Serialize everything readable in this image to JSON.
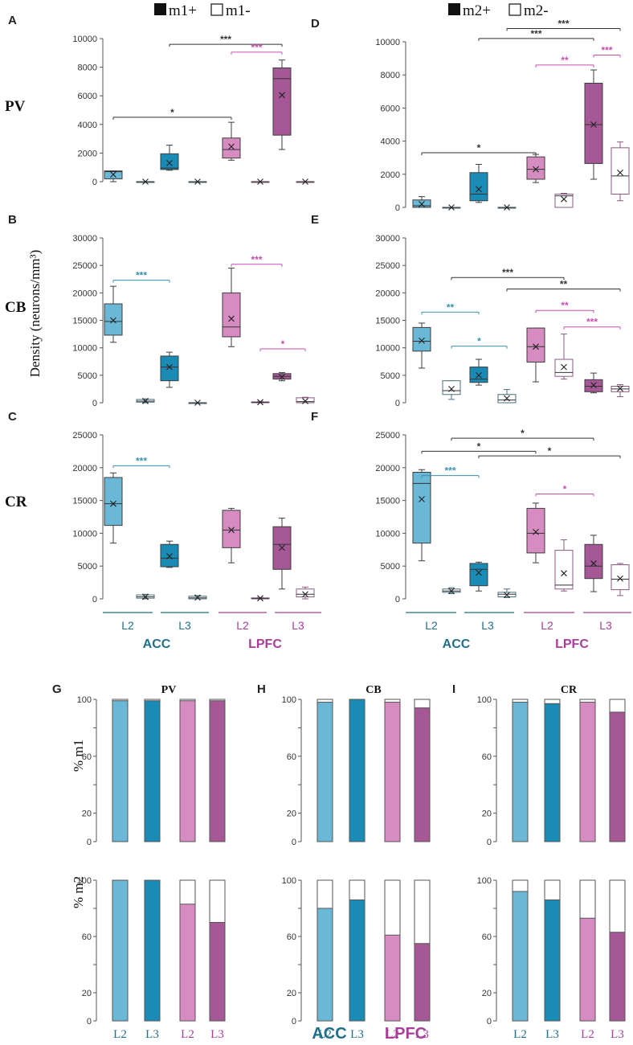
{
  "figure": {
    "legend_top_left": {
      "filled": "m1+",
      "open": "m1-"
    },
    "legend_top_right": {
      "filled": "m2+",
      "open": "m2-"
    },
    "y_axis_title": "Density (neurons/mm³)",
    "row_labels": [
      "PV",
      "CB",
      "CR"
    ],
    "group_labels": [
      "L2",
      "L3",
      "L2",
      "L3"
    ],
    "region_labels": [
      "ACC",
      "LPFC"
    ],
    "bar_y_titles": [
      "% m1",
      "% m2"
    ]
  },
  "colors": {
    "acc_l2": "#6bb7d6",
    "acc_l3": "#1a8bb5",
    "lpfc_l2": "#d68cc1",
    "lpfc_l3": "#a55796",
    "acc_text": "#1f6f8b",
    "lpfc_text": "#a93d9a",
    "sig_black": "#333333",
    "sig_acc": "#3a8fb0",
    "sig_lpfc": "#c44fb0"
  },
  "chart_data": [
    {
      "type": "box",
      "panel": "A",
      "row_label": "PV",
      "marker": "m1",
      "ylim": [
        0,
        10000
      ],
      "ticks": [
        0,
        2000,
        4000,
        6000,
        8000,
        10000
      ],
      "boxes": [
        {
          "group": "ACC L2",
          "fill": "acc_l2",
          "min": 0,
          "q1": 200,
          "median": 700,
          "q3": 750,
          "max": 750,
          "mean": 500
        },
        {
          "group": "ACC L2",
          "fill": "none",
          "min": 0,
          "q1": 0,
          "median": 0,
          "q3": 0,
          "max": 0,
          "mean": 0
        },
        {
          "group": "ACC L3",
          "fill": "acc_l3",
          "min": 800,
          "q1": 850,
          "median": 950,
          "q3": 1950,
          "max": 2550,
          "mean": 1300
        },
        {
          "group": "ACC L3",
          "fill": "none",
          "min": 0,
          "q1": 0,
          "median": 0,
          "q3": 0,
          "max": 0,
          "mean": 0
        },
        {
          "group": "LPFC L2",
          "fill": "lpfc_l2",
          "min": 1500,
          "q1": 1650,
          "median": 2250,
          "q3": 3050,
          "max": 4150,
          "mean": 2450
        },
        {
          "group": "LPFC L2",
          "fill": "none",
          "min": 0,
          "q1": 0,
          "median": 0,
          "q3": 0,
          "max": 0,
          "mean": 0
        },
        {
          "group": "LPFC L3",
          "fill": "lpfc_l3",
          "min": 2250,
          "q1": 3250,
          "median": 7200,
          "q3": 7950,
          "max": 8500,
          "mean": 6050
        },
        {
          "group": "LPFC L3",
          "fill": "none",
          "min": 0,
          "q1": 0,
          "median": 0,
          "q3": 0,
          "max": 0,
          "mean": 0
        }
      ],
      "significance": [
        {
          "from": 0,
          "to": 4,
          "y": 4500,
          "label": "*",
          "color": "sig_black"
        },
        {
          "from": 2,
          "to": 6,
          "y": 9600,
          "label": "***",
          "color": "sig_black"
        },
        {
          "from": 4,
          "to": 6,
          "y": 9050,
          "label": "***",
          "color": "sig_lpfc"
        }
      ]
    },
    {
      "type": "box",
      "panel": "B",
      "row_label": "CB",
      "marker": "m1",
      "ylim": [
        0,
        30000
      ],
      "ticks": [
        0,
        5000,
        10000,
        15000,
        20000,
        25000,
        30000
      ],
      "boxes": [
        {
          "group": "ACC L2",
          "fill": "acc_l2",
          "min": 11000,
          "q1": 12300,
          "median": 14800,
          "q3": 18000,
          "max": 21200,
          "mean": 15000
        },
        {
          "group": "ACC L2",
          "fill": "none",
          "min": 0,
          "q1": 100,
          "median": 300,
          "q3": 600,
          "max": 700,
          "mean": 300
        },
        {
          "group": "ACC L3",
          "fill": "acc_l3",
          "min": 2800,
          "q1": 4000,
          "median": 6500,
          "q3": 8500,
          "max": 9200,
          "mean": 6500
        },
        {
          "group": "ACC L3",
          "fill": "none",
          "min": 0,
          "q1": 0,
          "median": 0,
          "q3": 0,
          "max": 0,
          "mean": 0
        },
        {
          "group": "LPFC L2",
          "fill": "lpfc_l2",
          "min": 10200,
          "q1": 12000,
          "median": 13800,
          "q3": 20000,
          "max": 24500,
          "mean": 15300
        },
        {
          "group": "LPFC L2",
          "fill": "none",
          "min": 0,
          "q1": 0,
          "median": 50,
          "q3": 150,
          "max": 200,
          "mean": 100
        },
        {
          "group": "LPFC L3",
          "fill": "lpfc_l3",
          "min": 4000,
          "q1": 4300,
          "median": 4800,
          "q3": 5300,
          "max": 5500,
          "mean": 4700
        },
        {
          "group": "LPFC L3",
          "fill": "none",
          "min": 0,
          "q1": 0,
          "median": 200,
          "q3": 900,
          "max": 1000,
          "mean": 300
        }
      ],
      "significance": [
        {
          "from": 0,
          "to": 2,
          "y": 22300,
          "label": "***",
          "color": "sig_acc"
        },
        {
          "from": 4,
          "to": 6,
          "y": 25200,
          "label": "***",
          "color": "sig_lpfc"
        },
        {
          "from": 5,
          "to": 7,
          "y": 9800,
          "label": "*",
          "color": "sig_lpfc"
        }
      ]
    },
    {
      "type": "box",
      "panel": "C",
      "row_label": "CR",
      "marker": "m1",
      "ylim": [
        0,
        25000
      ],
      "ticks": [
        0,
        5000,
        10000,
        15000,
        20000,
        25000
      ],
      "boxes": [
        {
          "group": "ACC L2",
          "fill": "acc_l2",
          "min": 8500,
          "q1": 11200,
          "median": 14500,
          "q3": 18500,
          "max": 19200,
          "mean": 14500
        },
        {
          "group": "ACC L2",
          "fill": "none",
          "min": 0,
          "q1": 100,
          "median": 300,
          "q3": 600,
          "max": 700,
          "mean": 300
        },
        {
          "group": "ACC L3",
          "fill": "acc_l3",
          "min": 4800,
          "q1": 4900,
          "median": 6200,
          "q3": 8300,
          "max": 8800,
          "mean": 6500
        },
        {
          "group": "ACC L3",
          "fill": "none",
          "min": 0,
          "q1": 0,
          "median": 150,
          "q3": 400,
          "max": 500,
          "mean": 200
        },
        {
          "group": "LPFC L2",
          "fill": "lpfc_l2",
          "min": 5500,
          "q1": 7800,
          "median": 10500,
          "q3": 13500,
          "max": 13800,
          "mean": 10500
        },
        {
          "group": "LPFC L2",
          "fill": "none",
          "min": 0,
          "q1": 0,
          "median": 50,
          "q3": 150,
          "max": 200,
          "mean": 100
        },
        {
          "group": "LPFC L3",
          "fill": "lpfc_l3",
          "min": 1500,
          "q1": 4500,
          "median": 8300,
          "q3": 11000,
          "max": 12300,
          "mean": 7800
        },
        {
          "group": "LPFC L3",
          "fill": "none",
          "min": 0,
          "q1": 300,
          "median": 700,
          "q3": 1500,
          "max": 1800,
          "mean": 700
        }
      ],
      "significance": [
        {
          "from": 0,
          "to": 2,
          "y": 20300,
          "label": "***",
          "color": "sig_acc"
        }
      ]
    },
    {
      "type": "box",
      "panel": "D",
      "row_label": "PV",
      "marker": "m2",
      "ylim": [
        0,
        10000
      ],
      "ticks": [
        0,
        2000,
        4000,
        6000,
        8000,
        10000
      ],
      "boxes": [
        {
          "group": "ACC L2",
          "fill": "acc_l2",
          "min": 0,
          "q1": 0,
          "median": 100,
          "q3": 450,
          "max": 650,
          "mean": 200
        },
        {
          "group": "ACC L2",
          "fill": "none",
          "min": 0,
          "q1": 0,
          "median": 0,
          "q3": 0,
          "max": 0,
          "mean": 0
        },
        {
          "group": "ACC L3",
          "fill": "acc_l3",
          "min": 300,
          "q1": 400,
          "median": 800,
          "q3": 2100,
          "max": 2600,
          "mean": 1100
        },
        {
          "group": "ACC L3",
          "fill": "none",
          "min": 0,
          "q1": 0,
          "median": 0,
          "q3": 0,
          "max": 0,
          "mean": 0
        },
        {
          "group": "LPFC L2",
          "fill": "lpfc_l2",
          "min": 1500,
          "q1": 1700,
          "median": 2300,
          "q3": 3050,
          "max": 3200,
          "mean": 2300
        },
        {
          "group": "LPFC L2",
          "fill": "none",
          "min": 0,
          "q1": 0,
          "median": 700,
          "q3": 800,
          "max": 850,
          "mean": 500
        },
        {
          "group": "LPFC L3",
          "fill": "lpfc_l3",
          "min": 1700,
          "q1": 2650,
          "median": 5000,
          "q3": 7500,
          "max": 8300,
          "mean": 5000
        },
        {
          "group": "LPFC L3",
          "fill": "none",
          "min": 400,
          "q1": 800,
          "median": 1900,
          "q3": 3600,
          "max": 3950,
          "mean": 2100
        }
      ],
      "significance": [
        {
          "from": 0,
          "to": 4,
          "y": 3300,
          "label": "*",
          "color": "sig_black"
        },
        {
          "from": 4,
          "to": 6,
          "y": 8600,
          "label": "**",
          "color": "sig_lpfc"
        },
        {
          "from": 6,
          "to": 7,
          "y": 9200,
          "label": "***",
          "color": "sig_lpfc"
        },
        {
          "from": 2,
          "to": 6,
          "y": 10200,
          "label": "***",
          "color": "sig_black"
        },
        {
          "from": 3,
          "to": 7,
          "y": 10800,
          "label": "***",
          "color": "sig_black"
        }
      ]
    },
    {
      "type": "box",
      "panel": "E",
      "row_label": "CB",
      "marker": "m2",
      "ylim": [
        0,
        30000
      ],
      "ticks": [
        0,
        5000,
        10000,
        15000,
        20000,
        25000,
        30000
      ],
      "boxes": [
        {
          "group": "ACC L2",
          "fill": "acc_l2",
          "min": 6300,
          "q1": 9400,
          "median": 11200,
          "q3": 13700,
          "max": 14500,
          "mean": 11300
        },
        {
          "group": "ACC L2",
          "fill": "none",
          "min": 600,
          "q1": 1500,
          "median": 2200,
          "q3": 4000,
          "max": 4000,
          "mean": 2500
        },
        {
          "group": "ACC L3",
          "fill": "acc_l3",
          "min": 3200,
          "q1": 3700,
          "median": 4300,
          "q3": 6500,
          "max": 7900,
          "mean": 5000
        },
        {
          "group": "ACC L3",
          "fill": "none",
          "min": 0,
          "q1": 0,
          "median": 500,
          "q3": 1500,
          "max": 2400,
          "mean": 800
        },
        {
          "group": "LPFC L2",
          "fill": "lpfc_l2",
          "min": 3800,
          "q1": 7400,
          "median": 10200,
          "q3": 13600,
          "max": 13600,
          "mean": 10200
        },
        {
          "group": "LPFC L2",
          "fill": "none",
          "min": 4300,
          "q1": 4800,
          "median": 5500,
          "q3": 7900,
          "max": 12500,
          "mean": 6500
        },
        {
          "group": "LPFC L3",
          "fill": "lpfc_l3",
          "min": 1800,
          "q1": 2000,
          "median": 3000,
          "q3": 4200,
          "max": 5400,
          "mean": 3200
        },
        {
          "group": "LPFC L3",
          "fill": "none",
          "min": 1100,
          "q1": 2000,
          "median": 2500,
          "q3": 3000,
          "max": 3300,
          "mean": 2600
        }
      ],
      "significance": [
        {
          "from": 0,
          "to": 2,
          "y": 16500,
          "label": "**",
          "color": "sig_acc"
        },
        {
          "from": 1,
          "to": 3,
          "y": 10300,
          "label": "*",
          "color": "sig_acc"
        },
        {
          "from": 4,
          "to": 6,
          "y": 16800,
          "label": "**",
          "color": "sig_lpfc"
        },
        {
          "from": 5,
          "to": 7,
          "y": 13800,
          "label": "***",
          "color": "sig_lpfc"
        },
        {
          "from": 1,
          "to": 5,
          "y": 22800,
          "label": "***",
          "color": "sig_black"
        },
        {
          "from": 3,
          "to": 7,
          "y": 20700,
          "label": "**",
          "color": "sig_black"
        }
      ]
    },
    {
      "type": "box",
      "panel": "F",
      "row_label": "CR",
      "marker": "m2",
      "ylim": [
        0,
        25000
      ],
      "ticks": [
        0,
        5000,
        10000,
        15000,
        20000,
        25000
      ],
      "boxes": [
        {
          "group": "ACC L2",
          "fill": "acc_l2",
          "min": 5800,
          "q1": 8500,
          "median": 17600,
          "q3": 19300,
          "max": 19700,
          "mean": 15200
        },
        {
          "group": "ACC L2",
          "fill": "none",
          "min": 800,
          "q1": 1000,
          "median": 1200,
          "q3": 1500,
          "max": 1700,
          "mean": 1200
        },
        {
          "group": "ACC L3",
          "fill": "acc_l3",
          "min": 1200,
          "q1": 2000,
          "median": 4500,
          "q3": 5400,
          "max": 5600,
          "mean": 4000
        },
        {
          "group": "ACC L3",
          "fill": "none",
          "min": 200,
          "q1": 300,
          "median": 700,
          "q3": 1000,
          "max": 1500,
          "mean": 600
        },
        {
          "group": "LPFC L2",
          "fill": "lpfc_l2",
          "min": 5500,
          "q1": 7000,
          "median": 10000,
          "q3": 13800,
          "max": 14600,
          "mean": 10200
        },
        {
          "group": "LPFC L2",
          "fill": "none",
          "min": 1200,
          "q1": 1500,
          "median": 2100,
          "q3": 7400,
          "max": 9000,
          "mean": 3900
        },
        {
          "group": "LPFC L3",
          "fill": "lpfc_l3",
          "min": 1100,
          "q1": 3100,
          "median": 5000,
          "q3": 8300,
          "max": 9700,
          "mean": 5400
        },
        {
          "group": "LPFC L3",
          "fill": "none",
          "min": 500,
          "q1": 1400,
          "median": 3000,
          "q3": 5200,
          "max": 5400,
          "mean": 3100
        }
      ],
      "significance": [
        {
          "from": 0,
          "to": 2,
          "y": 18800,
          "label": "***",
          "color": "sig_acc"
        },
        {
          "from": 4,
          "to": 6,
          "y": 16000,
          "label": "*",
          "color": "sig_lpfc"
        },
        {
          "from": 0,
          "to": 4,
          "y": 22500,
          "label": "*",
          "color": "sig_black"
        },
        {
          "from": 2,
          "to": 7,
          "y": 21800,
          "label": "*",
          "color": "sig_black"
        },
        {
          "from": 1,
          "to": 6,
          "y": 24500,
          "label": "*",
          "color": "sig_black"
        }
      ]
    },
    {
      "type": "stacked_bar",
      "panel": "G",
      "title": "PV",
      "m1_percent": [
        99,
        99,
        99,
        99
      ],
      "m2_percent": [
        100,
        100,
        83,
        70
      ]
    },
    {
      "type": "stacked_bar",
      "panel": "H",
      "title": "CB",
      "m1_percent": [
        98,
        100,
        98,
        94
      ],
      "m2_percent": [
        80,
        86,
        61,
        55
      ]
    },
    {
      "type": "stacked_bar",
      "panel": "I",
      "title": "CR",
      "m1_percent": [
        98,
        97,
        98,
        91
      ],
      "m2_percent": [
        92,
        86,
        73,
        63
      ]
    }
  ]
}
